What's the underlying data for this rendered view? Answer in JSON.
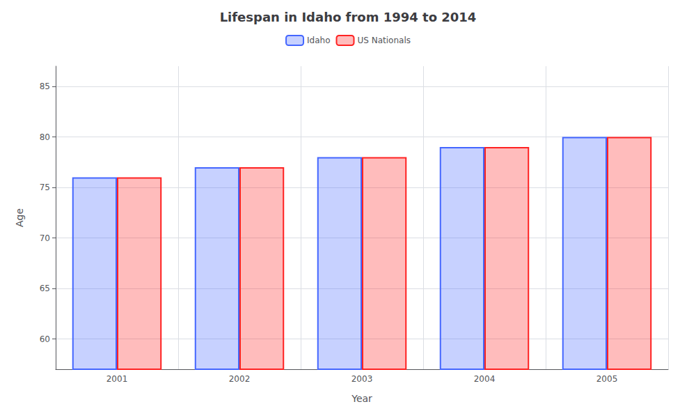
{
  "chart_data": {
    "type": "bar",
    "title": "Lifespan in Idaho from 1994 to 2014",
    "xlabel": "Year",
    "ylabel": "Age",
    "categories": [
      "2001",
      "2002",
      "2003",
      "2004",
      "2005"
    ],
    "series": [
      {
        "name": "Idaho",
        "color": "#4466ff",
        "values": [
          76,
          77,
          78,
          79,
          80
        ]
      },
      {
        "name": "US Nationals",
        "color": "#ff2222",
        "values": [
          76,
          77,
          78,
          79,
          80
        ]
      }
    ],
    "ylim": [
      57,
      87
    ],
    "yticks": [
      60,
      65,
      70,
      75,
      80,
      85
    ],
    "grid": true,
    "legend": "top"
  }
}
